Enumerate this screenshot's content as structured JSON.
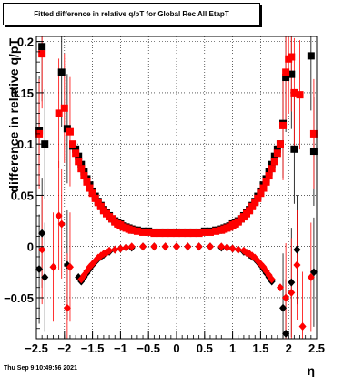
{
  "title": "Fitted difference in relative q/pT for Global Rec All EtapT",
  "timestamp": "Thu Sep  9 10:49:56 2021",
  "colors": {
    "series_black": "#000000",
    "series_red": "#ff0000",
    "grid": "#000000"
  },
  "chart_data": {
    "type": "scatter",
    "title": "Fitted difference in relative q/pT for Global Rec All EtapT",
    "xlabel": "η",
    "ylabel": "difference in relative q/pT",
    "xlim": [
      -2.5,
      2.5
    ],
    "ylim": [
      -0.09,
      0.205
    ],
    "grid": true,
    "x_ticks": [
      "−2.5",
      "−2",
      "−1.5",
      "−1",
      "−0.5",
      "0",
      "0.5",
      "1",
      "1.5",
      "2",
      "2.5"
    ],
    "y_ticks": [
      "−0.05",
      "0",
      "0.05",
      "0.1",
      "0.15",
      "0.2"
    ],
    "series": [
      {
        "marker": "square",
        "color": "#000000",
        "points": [
          {
            "x": -2.45,
            "y": 0.113
          },
          {
            "x": -2.4,
            "y": 0.195
          },
          {
            "x": -2.35,
            "y": 0.1
          },
          {
            "x": -2.05,
            "y": 0.17
          },
          {
            "x": -1.95,
            "y": 0.115
          },
          {
            "x": -1.85,
            "y": 0.098
          },
          {
            "x": -1.8,
            "y": 0.095
          },
          {
            "x": -1.75,
            "y": 0.088
          },
          {
            "x": -1.7,
            "y": 0.08
          },
          {
            "x": -1.65,
            "y": 0.073
          },
          {
            "x": -1.6,
            "y": 0.066
          },
          {
            "x": -1.55,
            "y": 0.06
          },
          {
            "x": -1.5,
            "y": 0.054
          },
          {
            "x": -1.45,
            "y": 0.049
          },
          {
            "x": -1.4,
            "y": 0.044
          },
          {
            "x": -1.35,
            "y": 0.04
          },
          {
            "x": -1.3,
            "y": 0.036
          },
          {
            "x": -1.25,
            "y": 0.033
          },
          {
            "x": -1.2,
            "y": 0.03
          },
          {
            "x": -1.15,
            "y": 0.027
          },
          {
            "x": -1.1,
            "y": 0.025
          },
          {
            "x": -1.05,
            "y": 0.023
          },
          {
            "x": -1.0,
            "y": 0.022
          },
          {
            "x": -0.95,
            "y": 0.02
          },
          {
            "x": -0.9,
            "y": 0.019
          },
          {
            "x": -0.85,
            "y": 0.018
          },
          {
            "x": -0.8,
            "y": 0.017
          },
          {
            "x": -0.75,
            "y": 0.016
          },
          {
            "x": -0.7,
            "y": 0.016
          },
          {
            "x": -0.6,
            "y": 0.015
          },
          {
            "x": -0.5,
            "y": 0.015
          },
          {
            "x": -0.4,
            "y": 0.014
          },
          {
            "x": -0.3,
            "y": 0.014
          },
          {
            "x": -0.2,
            "y": 0.014
          },
          {
            "x": -0.1,
            "y": 0.014
          },
          {
            "x": 0.0,
            "y": 0.014
          },
          {
            "x": 0.1,
            "y": 0.014
          },
          {
            "x": 0.2,
            "y": 0.014
          },
          {
            "x": 0.3,
            "y": 0.014
          },
          {
            "x": 0.4,
            "y": 0.014
          },
          {
            "x": 0.5,
            "y": 0.015
          },
          {
            "x": 0.6,
            "y": 0.015
          },
          {
            "x": 0.7,
            "y": 0.016
          },
          {
            "x": 0.75,
            "y": 0.016
          },
          {
            "x": 0.8,
            "y": 0.017
          },
          {
            "x": 0.85,
            "y": 0.018
          },
          {
            "x": 0.9,
            "y": 0.019
          },
          {
            "x": 0.95,
            "y": 0.02
          },
          {
            "x": 1.0,
            "y": 0.022
          },
          {
            "x": 1.05,
            "y": 0.023
          },
          {
            "x": 1.1,
            "y": 0.025
          },
          {
            "x": 1.15,
            "y": 0.027
          },
          {
            "x": 1.2,
            "y": 0.03
          },
          {
            "x": 1.25,
            "y": 0.033
          },
          {
            "x": 1.3,
            "y": 0.036
          },
          {
            "x": 1.35,
            "y": 0.04
          },
          {
            "x": 1.4,
            "y": 0.044
          },
          {
            "x": 1.45,
            "y": 0.049
          },
          {
            "x": 1.5,
            "y": 0.054
          },
          {
            "x": 1.55,
            "y": 0.06
          },
          {
            "x": 1.6,
            "y": 0.066
          },
          {
            "x": 1.65,
            "y": 0.073
          },
          {
            "x": 1.7,
            "y": 0.08
          },
          {
            "x": 1.75,
            "y": 0.088
          },
          {
            "x": 1.8,
            "y": 0.095
          },
          {
            "x": 1.85,
            "y": 0.1
          },
          {
            "x": 1.9,
            "y": 0.12
          },
          {
            "x": 1.95,
            "y": 0.165
          },
          {
            "x": 2.05,
            "y": 0.168
          },
          {
            "x": 2.1,
            "y": 0.095
          },
          {
            "x": 2.4,
            "y": 0.186
          },
          {
            "x": 2.45,
            "y": 0.093
          }
        ]
      },
      {
        "marker": "square",
        "color": "#ff0000",
        "points": [
          {
            "x": -2.45,
            "y": 0.11
          },
          {
            "x": -2.4,
            "y": 0.188
          },
          {
            "x": -2.1,
            "y": 0.13
          },
          {
            "x": -2.0,
            "y": 0.135
          },
          {
            "x": -1.9,
            "y": 0.112
          },
          {
            "x": -1.85,
            "y": 0.1
          },
          {
            "x": -1.8,
            "y": 0.091
          },
          {
            "x": -1.75,
            "y": 0.083
          },
          {
            "x": -1.7,
            "y": 0.076
          },
          {
            "x": -1.65,
            "y": 0.069
          },
          {
            "x": -1.6,
            "y": 0.063
          },
          {
            "x": -1.55,
            "y": 0.057
          },
          {
            "x": -1.5,
            "y": 0.052
          },
          {
            "x": -1.45,
            "y": 0.047
          },
          {
            "x": -1.4,
            "y": 0.043
          },
          {
            "x": -1.35,
            "y": 0.039
          },
          {
            "x": -1.3,
            "y": 0.035
          },
          {
            "x": -1.25,
            "y": 0.032
          },
          {
            "x": -1.2,
            "y": 0.029
          },
          {
            "x": -1.15,
            "y": 0.027
          },
          {
            "x": -1.1,
            "y": 0.024
          },
          {
            "x": -1.05,
            "y": 0.022
          },
          {
            "x": -1.0,
            "y": 0.021
          },
          {
            "x": -0.95,
            "y": 0.019
          },
          {
            "x": -0.9,
            "y": 0.018
          },
          {
            "x": -0.85,
            "y": 0.017
          },
          {
            "x": -0.8,
            "y": 0.016
          },
          {
            "x": -0.7,
            "y": 0.015
          },
          {
            "x": -0.6,
            "y": 0.014
          },
          {
            "x": -0.5,
            "y": 0.014
          },
          {
            "x": -0.4,
            "y": 0.013
          },
          {
            "x": -0.3,
            "y": 0.013
          },
          {
            "x": -0.2,
            "y": 0.013
          },
          {
            "x": -0.1,
            "y": 0.013
          },
          {
            "x": 0.0,
            "y": 0.013
          },
          {
            "x": 0.1,
            "y": 0.013
          },
          {
            "x": 0.2,
            "y": 0.013
          },
          {
            "x": 0.3,
            "y": 0.013
          },
          {
            "x": 0.4,
            "y": 0.013
          },
          {
            "x": 0.5,
            "y": 0.014
          },
          {
            "x": 0.6,
            "y": 0.014
          },
          {
            "x": 0.7,
            "y": 0.015
          },
          {
            "x": 0.8,
            "y": 0.016
          },
          {
            "x": 0.85,
            "y": 0.017
          },
          {
            "x": 0.9,
            "y": 0.018
          },
          {
            "x": 0.95,
            "y": 0.019
          },
          {
            "x": 1.0,
            "y": 0.021
          },
          {
            "x": 1.05,
            "y": 0.022
          },
          {
            "x": 1.1,
            "y": 0.024
          },
          {
            "x": 1.15,
            "y": 0.027
          },
          {
            "x": 1.2,
            "y": 0.029
          },
          {
            "x": 1.25,
            "y": 0.032
          },
          {
            "x": 1.3,
            "y": 0.035
          },
          {
            "x": 1.35,
            "y": 0.039
          },
          {
            "x": 1.4,
            "y": 0.043
          },
          {
            "x": 1.45,
            "y": 0.047
          },
          {
            "x": 1.5,
            "y": 0.052
          },
          {
            "x": 1.55,
            "y": 0.057
          },
          {
            "x": 1.6,
            "y": 0.063
          },
          {
            "x": 1.65,
            "y": 0.069
          },
          {
            "x": 1.7,
            "y": 0.076
          },
          {
            "x": 1.75,
            "y": 0.083
          },
          {
            "x": 1.8,
            "y": 0.091
          },
          {
            "x": 1.85,
            "y": 0.1
          },
          {
            "x": 1.9,
            "y": 0.118
          },
          {
            "x": 1.95,
            "y": 0.17
          },
          {
            "x": 2.0,
            "y": 0.183
          },
          {
            "x": 2.05,
            "y": 0.185
          },
          {
            "x": 2.1,
            "y": 0.15
          },
          {
            "x": 2.2,
            "y": 0.148
          },
          {
            "x": 2.45,
            "y": 0.11
          }
        ]
      },
      {
        "marker": "diamond",
        "color": "#000000",
        "points": [
          {
            "x": -2.45,
            "y": -0.022
          },
          {
            "x": -2.4,
            "y": 0.013
          },
          {
            "x": -2.35,
            "y": -0.03
          },
          {
            "x": -1.95,
            "y": -0.018
          },
          {
            "x": -1.75,
            "y": -0.03
          },
          {
            "x": -1.7,
            "y": -0.034
          },
          {
            "x": -1.65,
            "y": -0.03
          },
          {
            "x": -1.6,
            "y": -0.026
          },
          {
            "x": -1.55,
            "y": -0.022
          },
          {
            "x": -1.5,
            "y": -0.018
          },
          {
            "x": -1.45,
            "y": -0.015
          },
          {
            "x": -1.4,
            "y": -0.012
          },
          {
            "x": -1.35,
            "y": -0.01
          },
          {
            "x": -1.3,
            "y": -0.008
          },
          {
            "x": -1.25,
            "y": -0.006
          },
          {
            "x": -1.2,
            "y": -0.005
          },
          {
            "x": -1.1,
            "y": -0.003
          },
          {
            "x": -1.0,
            "y": -0.002
          },
          {
            "x": -0.9,
            "y": -0.001
          },
          {
            "x": -0.8,
            "y": -0.001
          },
          {
            "x": -0.6,
            "y": 0.0
          },
          {
            "x": -0.4,
            "y": 0.0
          },
          {
            "x": -0.2,
            "y": 0.0
          },
          {
            "x": 0.0,
            "y": 0.0
          },
          {
            "x": 0.2,
            "y": 0.0
          },
          {
            "x": 0.4,
            "y": 0.0
          },
          {
            "x": 0.6,
            "y": 0.0
          },
          {
            "x": 0.8,
            "y": -0.001
          },
          {
            "x": 0.9,
            "y": -0.001
          },
          {
            "x": 1.0,
            "y": -0.002
          },
          {
            "x": 1.1,
            "y": -0.003
          },
          {
            "x": 1.2,
            "y": -0.005
          },
          {
            "x": 1.25,
            "y": -0.006
          },
          {
            "x": 1.3,
            "y": -0.008
          },
          {
            "x": 1.35,
            "y": -0.01
          },
          {
            "x": 1.4,
            "y": -0.012
          },
          {
            "x": 1.45,
            "y": -0.015
          },
          {
            "x": 1.5,
            "y": -0.018
          },
          {
            "x": 1.55,
            "y": -0.022
          },
          {
            "x": 1.6,
            "y": -0.026
          },
          {
            "x": 1.65,
            "y": -0.03
          },
          {
            "x": 1.7,
            "y": -0.034
          },
          {
            "x": 1.9,
            "y": -0.06
          },
          {
            "x": 1.95,
            "y": -0.085
          },
          {
            "x": 2.05,
            "y": -0.035
          },
          {
            "x": 2.15,
            "y": -0.003
          },
          {
            "x": 2.45,
            "y": -0.025
          }
        ]
      },
      {
        "marker": "diamond",
        "color": "#ff0000",
        "points": [
          {
            "x": -2.4,
            "y": -0.003
          },
          {
            "x": -2.2,
            "y": -0.02
          },
          {
            "x": -2.1,
            "y": 0.03
          },
          {
            "x": -2.05,
            "y": 0.022
          },
          {
            "x": -1.95,
            "y": -0.06
          },
          {
            "x": -1.9,
            "y": -0.02
          },
          {
            "x": -1.7,
            "y": -0.032
          },
          {
            "x": -1.65,
            "y": -0.028
          },
          {
            "x": -1.6,
            "y": -0.024
          },
          {
            "x": -1.55,
            "y": -0.02
          },
          {
            "x": -1.5,
            "y": -0.017
          },
          {
            "x": -1.45,
            "y": -0.014
          },
          {
            "x": -1.4,
            "y": -0.011
          },
          {
            "x": -1.35,
            "y": -0.009
          },
          {
            "x": -1.3,
            "y": -0.007
          },
          {
            "x": -1.25,
            "y": -0.006
          },
          {
            "x": -1.2,
            "y": -0.004
          },
          {
            "x": -1.1,
            "y": -0.003
          },
          {
            "x": -1.0,
            "y": -0.002
          },
          {
            "x": -0.9,
            "y": -0.001
          },
          {
            "x": -0.8,
            "y": 0.0
          },
          {
            "x": -0.6,
            "y": 0.0
          },
          {
            "x": -0.4,
            "y": 0.0
          },
          {
            "x": -0.2,
            "y": 0.0
          },
          {
            "x": 0.0,
            "y": 0.0
          },
          {
            "x": 0.2,
            "y": 0.0
          },
          {
            "x": 0.4,
            "y": 0.0
          },
          {
            "x": 0.6,
            "y": 0.0
          },
          {
            "x": 0.8,
            "y": 0.0
          },
          {
            "x": 0.9,
            "y": -0.001
          },
          {
            "x": 1.0,
            "y": -0.002
          },
          {
            "x": 1.1,
            "y": -0.003
          },
          {
            "x": 1.2,
            "y": -0.004
          },
          {
            "x": 1.25,
            "y": -0.006
          },
          {
            "x": 1.3,
            "y": -0.007
          },
          {
            "x": 1.35,
            "y": -0.009
          },
          {
            "x": 1.4,
            "y": -0.011
          },
          {
            "x": 1.45,
            "y": -0.014
          },
          {
            "x": 1.5,
            "y": -0.017
          },
          {
            "x": 1.55,
            "y": -0.02
          },
          {
            "x": 1.6,
            "y": -0.024
          },
          {
            "x": 1.65,
            "y": -0.028
          },
          {
            "x": 1.7,
            "y": -0.032
          },
          {
            "x": 1.85,
            "y": -0.04
          },
          {
            "x": 1.95,
            "y": -0.05
          },
          {
            "x": 2.05,
            "y": -0.045
          },
          {
            "x": 2.15,
            "y": -0.018
          },
          {
            "x": 2.25,
            "y": -0.078
          },
          {
            "x": 2.4,
            "y": -0.03
          }
        ]
      }
    ]
  }
}
